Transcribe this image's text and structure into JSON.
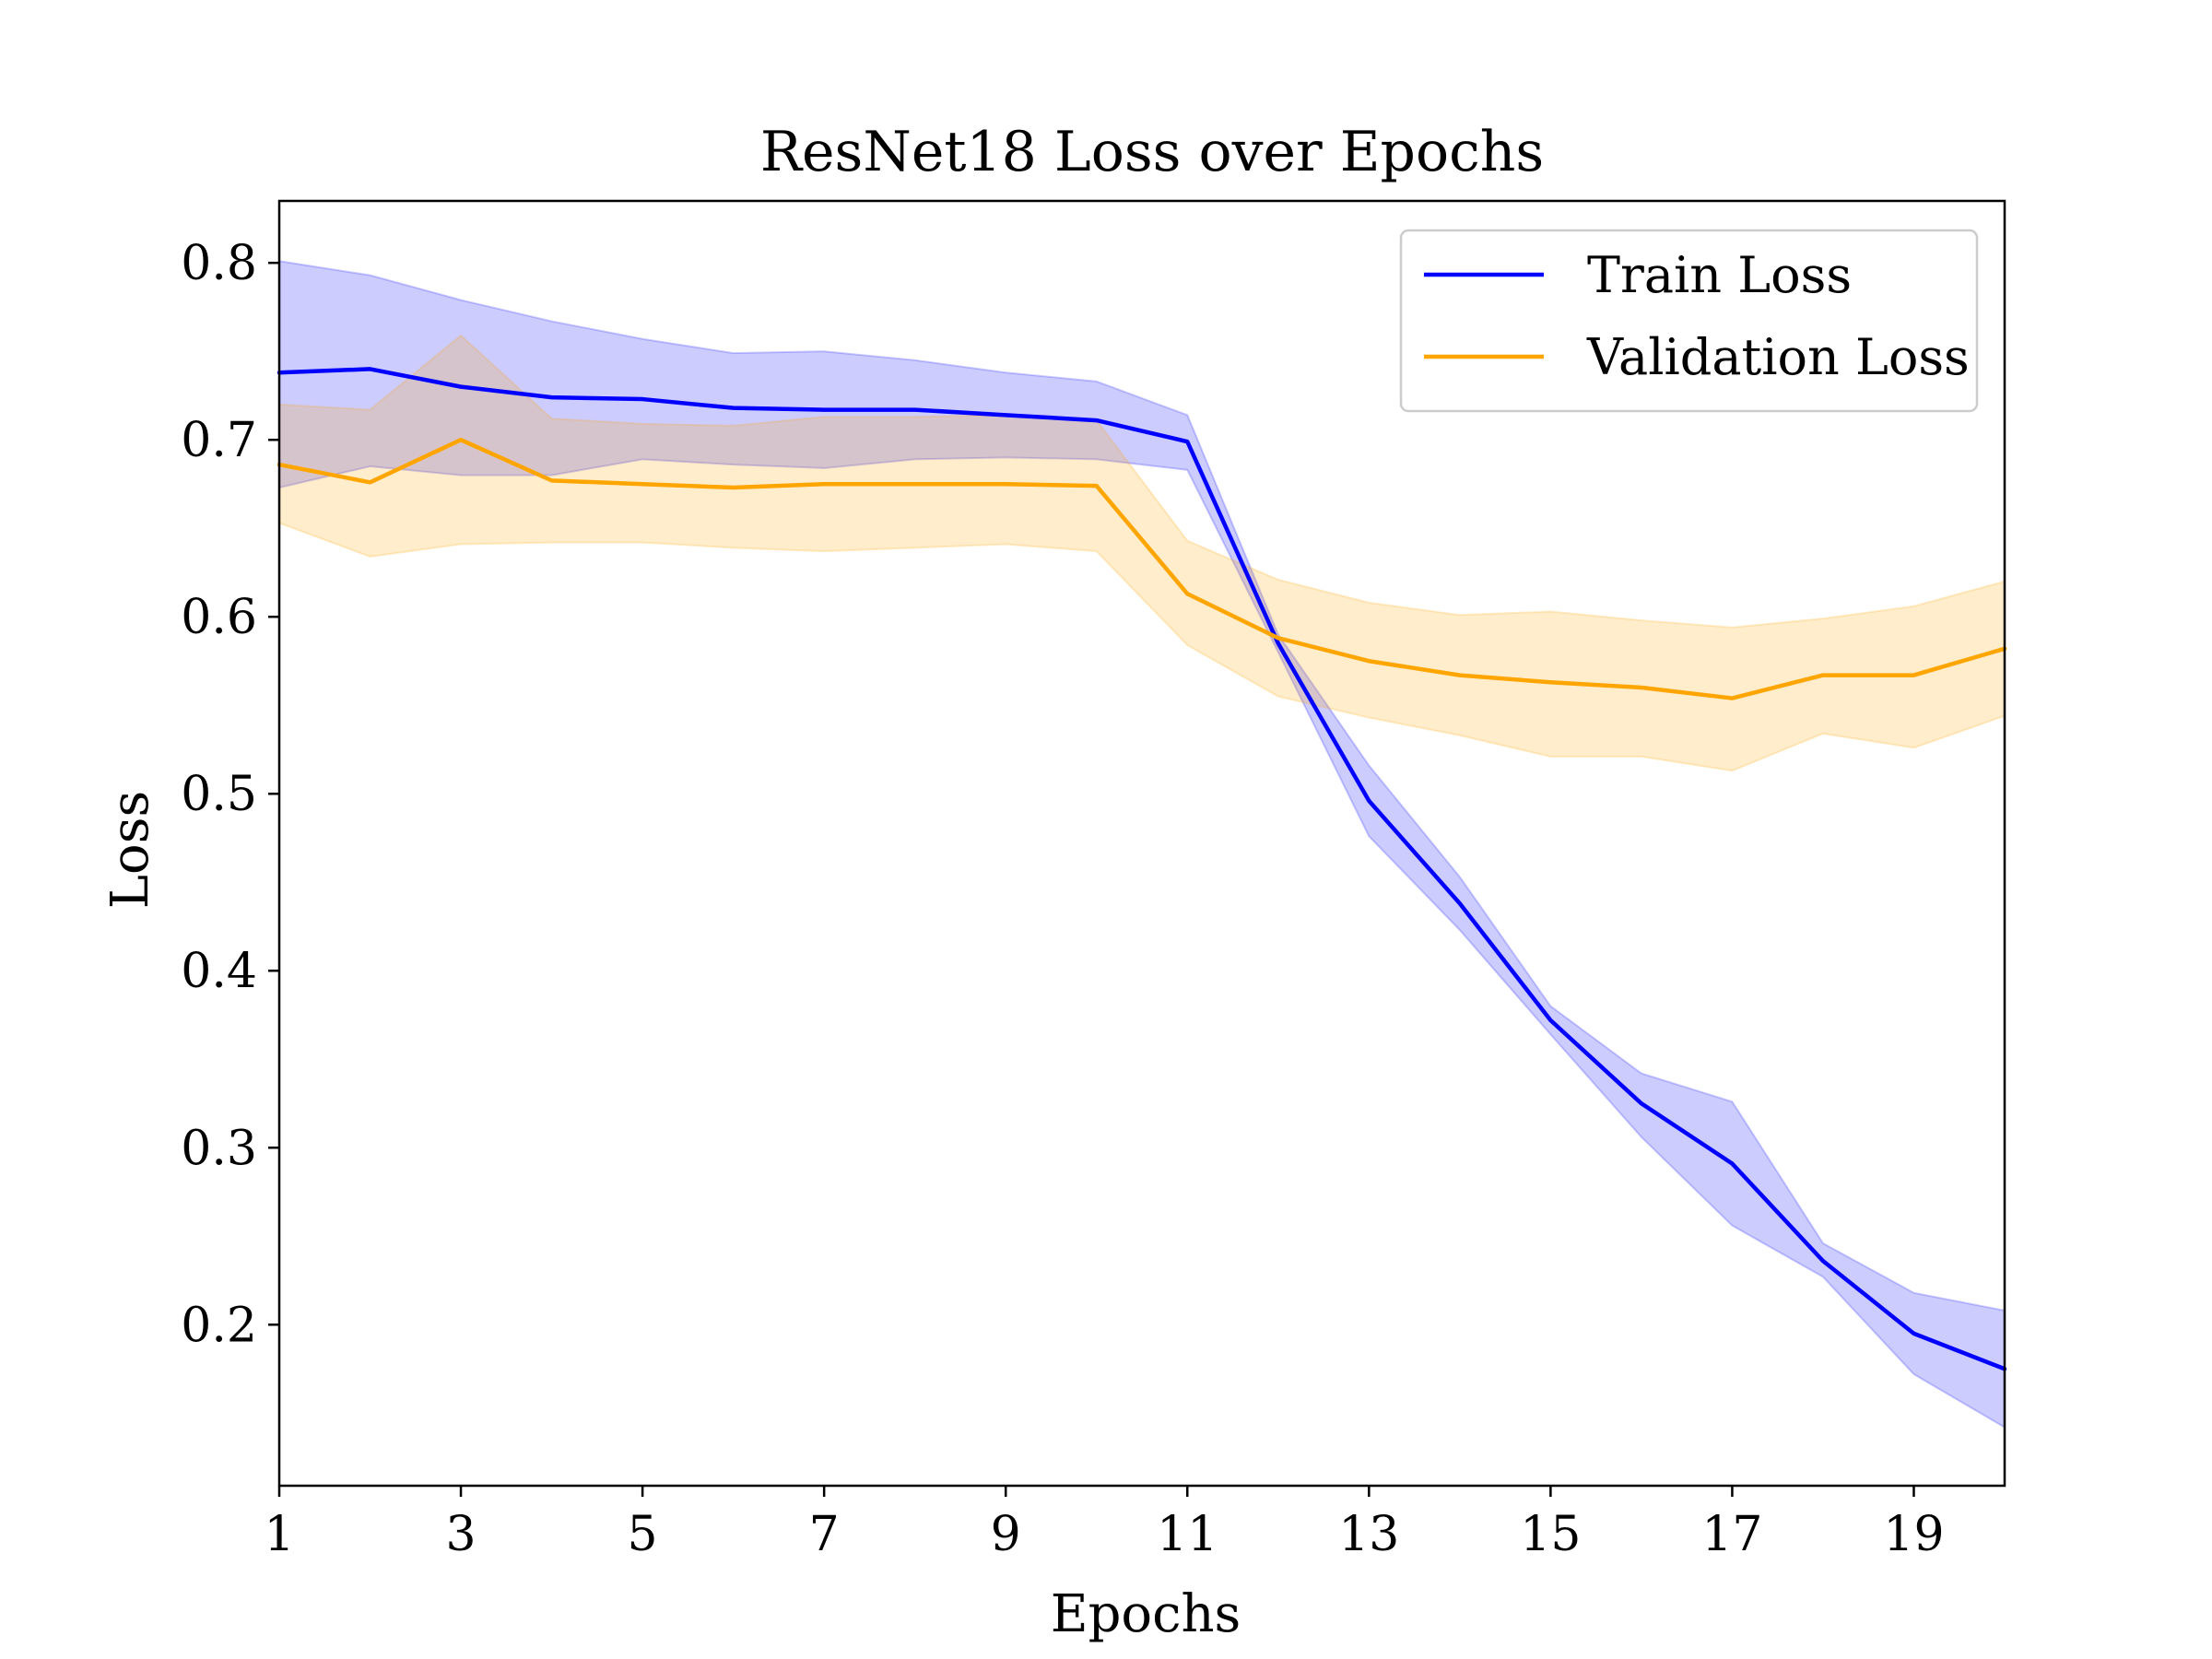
{
  "chart_data": {
    "type": "line",
    "title": "ResNet18 Loss over Epochs",
    "xlabel": "Epochs",
    "ylabel": "Loss",
    "xlim": [
      1,
      20
    ],
    "ylim": [
      0.109,
      0.835
    ],
    "xticks": [
      1,
      3,
      5,
      7,
      9,
      11,
      13,
      15,
      17,
      19
    ],
    "xtick_labels": [
      "1",
      "3",
      "5",
      "7",
      "9",
      "11",
      "13",
      "15",
      "17",
      "19"
    ],
    "yticks": [
      0.2,
      0.3,
      0.4,
      0.5,
      0.6,
      0.7,
      0.8
    ],
    "ytick_labels": [
      "0.2",
      "0.3",
      "0.4",
      "0.5",
      "0.6",
      "0.7",
      "0.8"
    ],
    "grid": false,
    "legend_position": "upper-right",
    "x": [
      1,
      2,
      3,
      4,
      5,
      6,
      7,
      8,
      9,
      10,
      11,
      12,
      13,
      14,
      15,
      16,
      17,
      18,
      19,
      20
    ],
    "series": [
      {
        "name": "Train Loss",
        "color": "#0000ff",
        "values": [
          0.738,
          0.74,
          0.73,
          0.724,
          0.723,
          0.718,
          0.717,
          0.717,
          0.714,
          0.711,
          0.699,
          0.585,
          0.496,
          0.438,
          0.372,
          0.325,
          0.291,
          0.236,
          0.195,
          0.175
        ],
        "upper": [
          0.801,
          0.793,
          0.779,
          0.767,
          0.757,
          0.749,
          0.75,
          0.745,
          0.738,
          0.733,
          0.714,
          0.59,
          0.516,
          0.453,
          0.38,
          0.342,
          0.326,
          0.246,
          0.218,
          0.208
        ],
        "lower": [
          0.673,
          0.685,
          0.68,
          0.68,
          0.689,
          0.686,
          0.684,
          0.689,
          0.69,
          0.689,
          0.683,
          0.58,
          0.476,
          0.423,
          0.364,
          0.306,
          0.256,
          0.227,
          0.172,
          0.142
        ]
      },
      {
        "name": "Validation Loss",
        "color": "#ffa500",
        "values": [
          0.686,
          0.676,
          0.7,
          0.677,
          0.675,
          0.673,
          0.675,
          0.675,
          0.675,
          0.674,
          0.613,
          0.588,
          0.575,
          0.567,
          0.563,
          0.56,
          0.554,
          0.567,
          0.567,
          0.582
        ],
        "upper": [
          0.72,
          0.717,
          0.759,
          0.712,
          0.709,
          0.708,
          0.713,
          0.713,
          0.714,
          0.711,
          0.643,
          0.621,
          0.608,
          0.601,
          0.603,
          0.598,
          0.594,
          0.599,
          0.606,
          0.62
        ],
        "lower": [
          0.653,
          0.634,
          0.641,
          0.642,
          0.642,
          0.639,
          0.637,
          0.639,
          0.641,
          0.637,
          0.584,
          0.555,
          0.543,
          0.533,
          0.521,
          0.521,
          0.513,
          0.534,
          0.526,
          0.544
        ]
      }
    ]
  }
}
